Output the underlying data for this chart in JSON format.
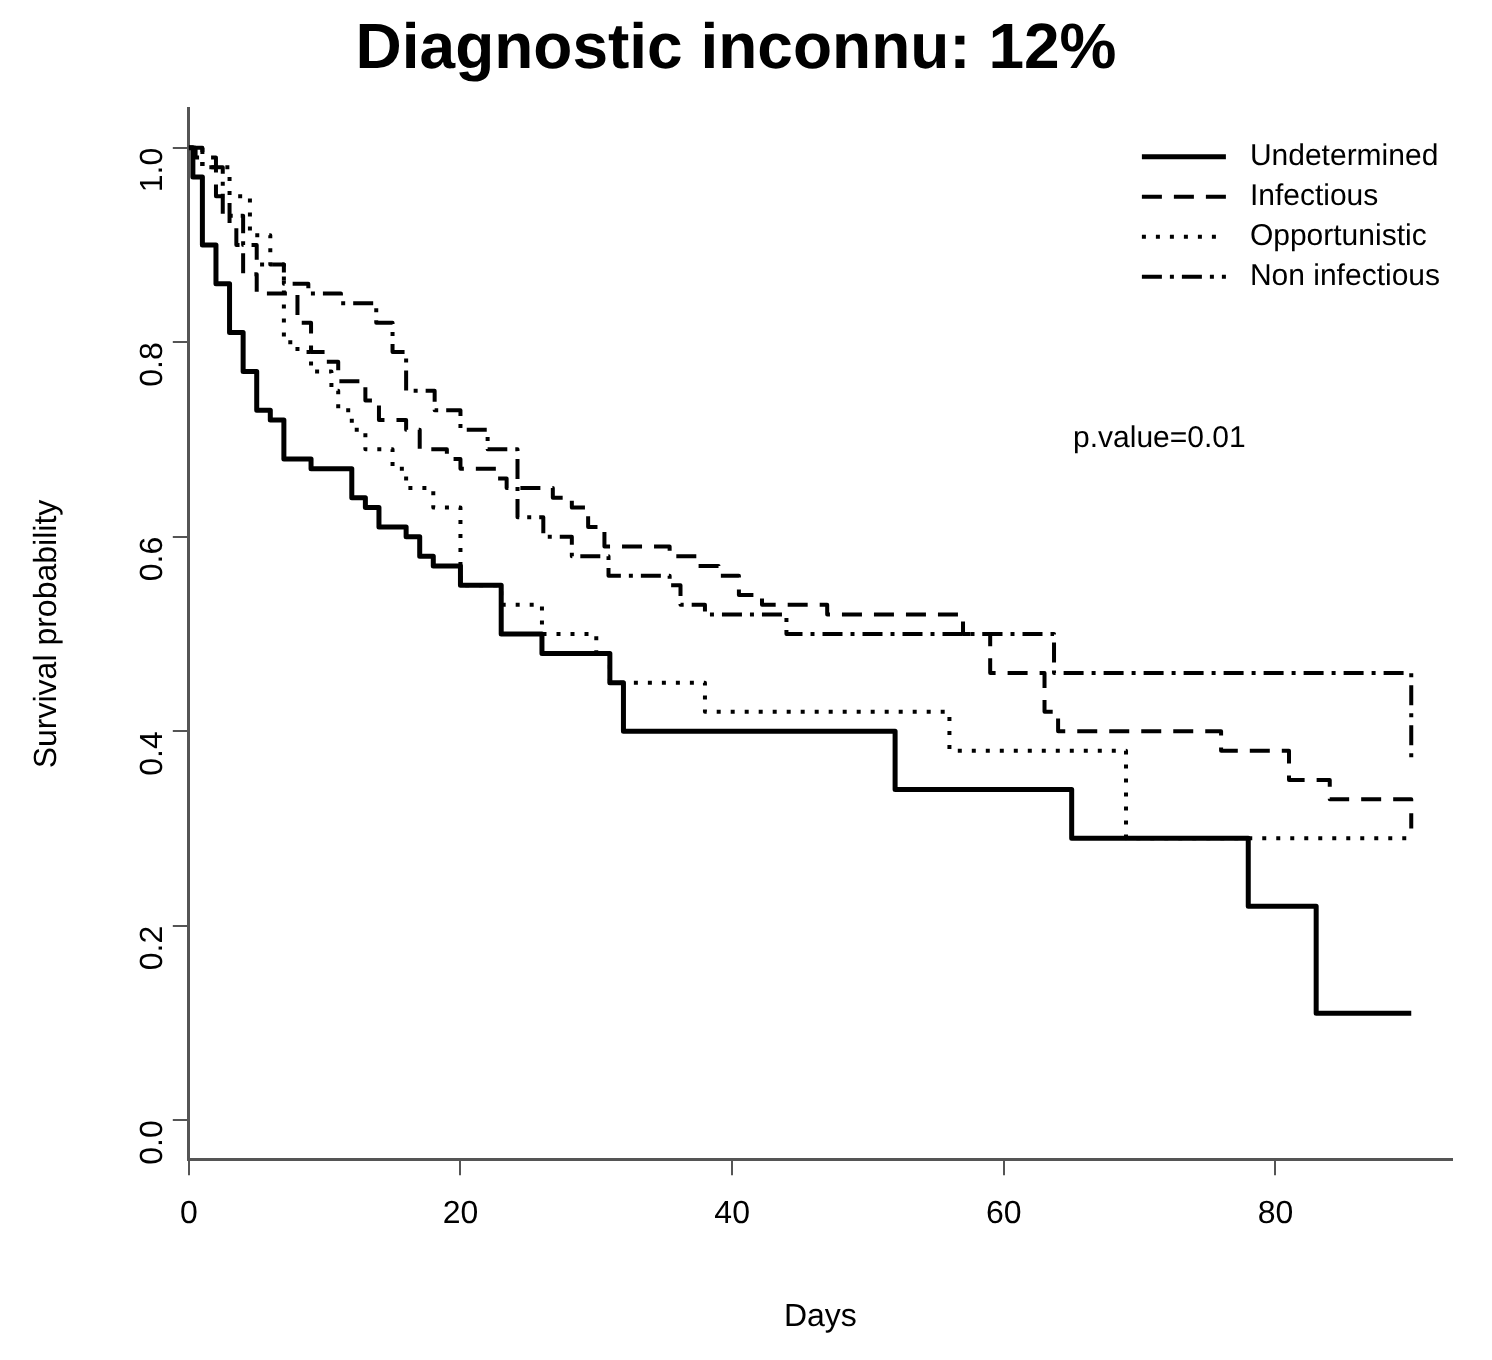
{
  "chart_data": {
    "type": "step",
    "title": "Diagnostic inconnu: 12%",
    "xlabel": "Days",
    "ylabel": "Survival probability",
    "xlim": [
      0,
      93
    ],
    "xticks": [
      0,
      20,
      40,
      60,
      80
    ],
    "ylim": [
      -0.04,
      1.04
    ],
    "yticks": [
      {
        "value": 0,
        "label": "0.0"
      },
      0.2,
      0.4,
      0.6,
      0.8,
      {
        "value": 1,
        "label": "1.0"
      }
    ],
    "grid": false,
    "legend": "top right",
    "marker": "none",
    "annotations": [
      "p.value=0.01"
    ],
    "series": [
      {
        "name": "Undetermined",
        "color": "#000000",
        "line_style": "solid",
        "x": [
          0,
          0.3,
          1,
          2,
          3,
          4,
          5,
          6,
          7,
          9,
          12,
          13,
          14,
          16,
          17,
          18,
          20,
          23,
          26,
          31,
          32,
          52,
          65,
          78,
          83,
          90
        ],
        "values": [
          1,
          0.97,
          0.9,
          0.86,
          0.81,
          0.77,
          0.73,
          0.72,
          0.68,
          0.67,
          0.64,
          0.63,
          0.61,
          0.6,
          0.58,
          0.57,
          0.55,
          0.5,
          0.48,
          0.45,
          0.4,
          0.34,
          0.29,
          0.22,
          0.11,
          0.11
        ]
      },
      {
        "name": "Infectious",
        "color": "#000000",
        "line_style": "dashed",
        "x": [
          0,
          0.5,
          2,
          3,
          3.5,
          4,
          5,
          8,
          9,
          10,
          11,
          13,
          14,
          16,
          17,
          19,
          20,
          22.7,
          23.4,
          26.8,
          28.2,
          29.4,
          30.6,
          35.4,
          37.4,
          39,
          40.5,
          42.2,
          47,
          57,
          59,
          63,
          64,
          76,
          81,
          84,
          90
        ],
        "values": [
          1,
          0.99,
          0.95,
          0.92,
          0.9,
          0.87,
          0.85,
          0.82,
          0.79,
          0.78,
          0.76,
          0.74,
          0.72,
          0.71,
          0.69,
          0.68,
          0.67,
          0.66,
          0.65,
          0.64,
          0.63,
          0.61,
          0.59,
          0.58,
          0.57,
          0.56,
          0.54,
          0.53,
          0.52,
          0.5,
          0.46,
          0.42,
          0.4,
          0.38,
          0.35,
          0.33,
          0.3
        ]
      },
      {
        "name": "Opportunistic",
        "color": "#000000",
        "line_style": "dotted",
        "x": [
          0,
          1,
          3,
          4.5,
          6,
          7,
          8,
          9,
          10.5,
          11,
          12,
          13,
          15,
          16,
          18,
          20,
          23,
          26,
          30,
          31,
          38,
          56,
          69,
          90
        ],
        "values": [
          1,
          0.98,
          0.95,
          0.91,
          0.88,
          0.8,
          0.79,
          0.77,
          0.75,
          0.73,
          0.71,
          0.69,
          0.67,
          0.65,
          0.63,
          0.55,
          0.53,
          0.5,
          0.48,
          0.45,
          0.42,
          0.38,
          0.29,
          0.29
        ]
      },
      {
        "name": "Non infectious",
        "color": "#000000",
        "line_style": "dashdot",
        "x": [
          0,
          1,
          2.5,
          4,
          5,
          7,
          8.8,
          11.2,
          13.8,
          15,
          16,
          18.1,
          20,
          22,
          24.2,
          26.1,
          28.2,
          30.9,
          35.4,
          36.2,
          38,
          44,
          63.7,
          90
        ],
        "values": [
          1,
          0.98,
          0.93,
          0.9,
          0.88,
          0.86,
          0.85,
          0.84,
          0.82,
          0.79,
          0.75,
          0.73,
          0.71,
          0.69,
          0.62,
          0.6,
          0.58,
          0.56,
          0.55,
          0.53,
          0.52,
          0.5,
          0.46,
          0.37
        ]
      }
    ]
  }
}
